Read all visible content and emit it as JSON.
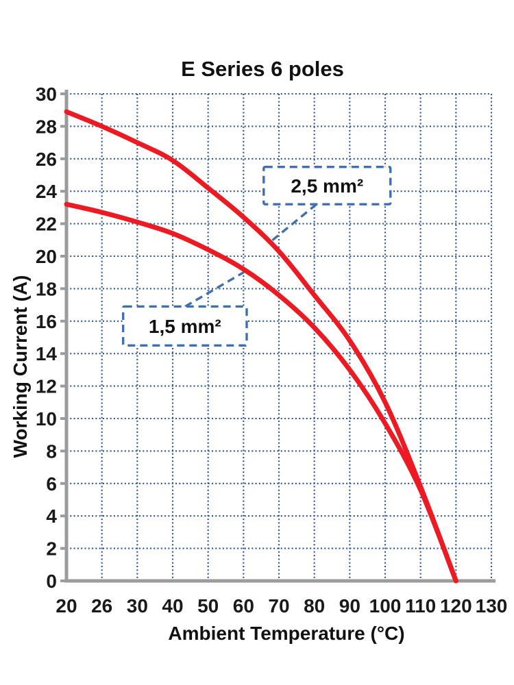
{
  "title": "E Series 6 poles",
  "colors": {
    "curve_red": "#ec1b23",
    "grid_blue": "#27508e",
    "annotation_blue": "#3f6fad",
    "axis_gray": "#9b9b9b",
    "text": "#1a1a1a",
    "background": "#ffffff"
  },
  "chart_data": {
    "type": "line",
    "title": "E Series 6 poles",
    "xlabel": "Ambient Temperature (°C)",
    "ylabel": "Working Current (A)",
    "x_categories": [
      20,
      26,
      30,
      40,
      50,
      60,
      70,
      80,
      90,
      100,
      110,
      120,
      130
    ],
    "x_categories_equally_spaced": true,
    "ylim": [
      0,
      30
    ],
    "ytick_step": 2,
    "grid": "dotted blue, horizontal and vertical",
    "legend_position": "none (inline callout boxes)",
    "series": [
      {
        "name": "2,5 mm²",
        "color": "#ec1b23",
        "points": [
          [
            20,
            28.9
          ],
          [
            26,
            28.0
          ],
          [
            30,
            27.0
          ],
          [
            40,
            25.9
          ],
          [
            50,
            24.2
          ],
          [
            60,
            22.4
          ],
          [
            70,
            20.3
          ],
          [
            80,
            17.6
          ],
          [
            90,
            14.8
          ],
          [
            100,
            11.0
          ],
          [
            110,
            5.8
          ],
          [
            120,
            0
          ]
        ]
      },
      {
        "name": "1,5 mm²",
        "color": "#ec1b23",
        "points": [
          [
            20,
            23.2
          ],
          [
            26,
            22.7
          ],
          [
            30,
            22.1
          ],
          [
            40,
            21.4
          ],
          [
            50,
            20.4
          ],
          [
            60,
            19.2
          ],
          [
            70,
            17.6
          ],
          [
            80,
            15.6
          ],
          [
            90,
            13.0
          ],
          [
            100,
            9.7
          ],
          [
            110,
            5.6
          ],
          [
            120,
            0
          ]
        ]
      }
    ],
    "annotations": [
      {
        "label": "2,5 mm²",
        "box": {
          "x_min": 65.7,
          "x_max": 101.5,
          "y_min": 23.2,
          "y_max": 25.5
        },
        "leader": {
          "from": {
            "x": 80.6,
            "y": 23.2
          },
          "to": {
            "x": 67.7,
            "y": 20.9
          }
        }
      },
      {
        "label": "1,5 mm²",
        "box": {
          "x_min": 28.4,
          "x_max": 60.9,
          "y_min": 14.5,
          "y_max": 16.9
        },
        "leader": {
          "from": {
            "x": 43.5,
            "y": 16.9
          },
          "to": {
            "x": 60,
            "y": 19.0
          }
        }
      }
    ]
  }
}
